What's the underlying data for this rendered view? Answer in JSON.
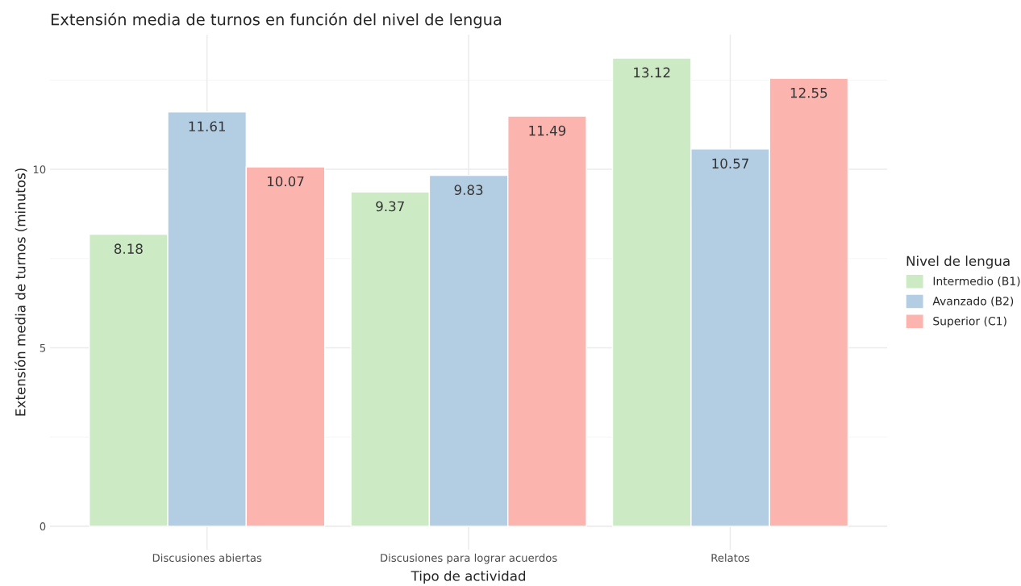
{
  "chart_data": {
    "type": "bar",
    "title": "Extensión media de turnos en función del nivel de lengua",
    "xlabel": "Tipo de actividad",
    "ylabel": "Extensión media de turnos (minutos)",
    "legend_title": "Nivel de lengua",
    "categories": [
      "Discusiones abiertas",
      "Discusiones para lograr acuerdos",
      "Relatos"
    ],
    "series": [
      {
        "name": "Intermedio (B1)",
        "color": "#ccebc5",
        "values": [
          8.18,
          9.37,
          13.12
        ]
      },
      {
        "name": "Avanzado (B2)",
        "color": "#b3cde3",
        "values": [
          11.61,
          9.83,
          10.57
        ]
      },
      {
        "name": "Superior (C1)",
        "color": "#fbb4ae",
        "values": [
          10.07,
          11.49,
          12.55
        ]
      }
    ],
    "ylim": [
      -0.656,
      13.776
    ],
    "yticks": [
      0,
      5,
      10
    ],
    "grid": true,
    "legend": "right",
    "data_labels": true
  }
}
